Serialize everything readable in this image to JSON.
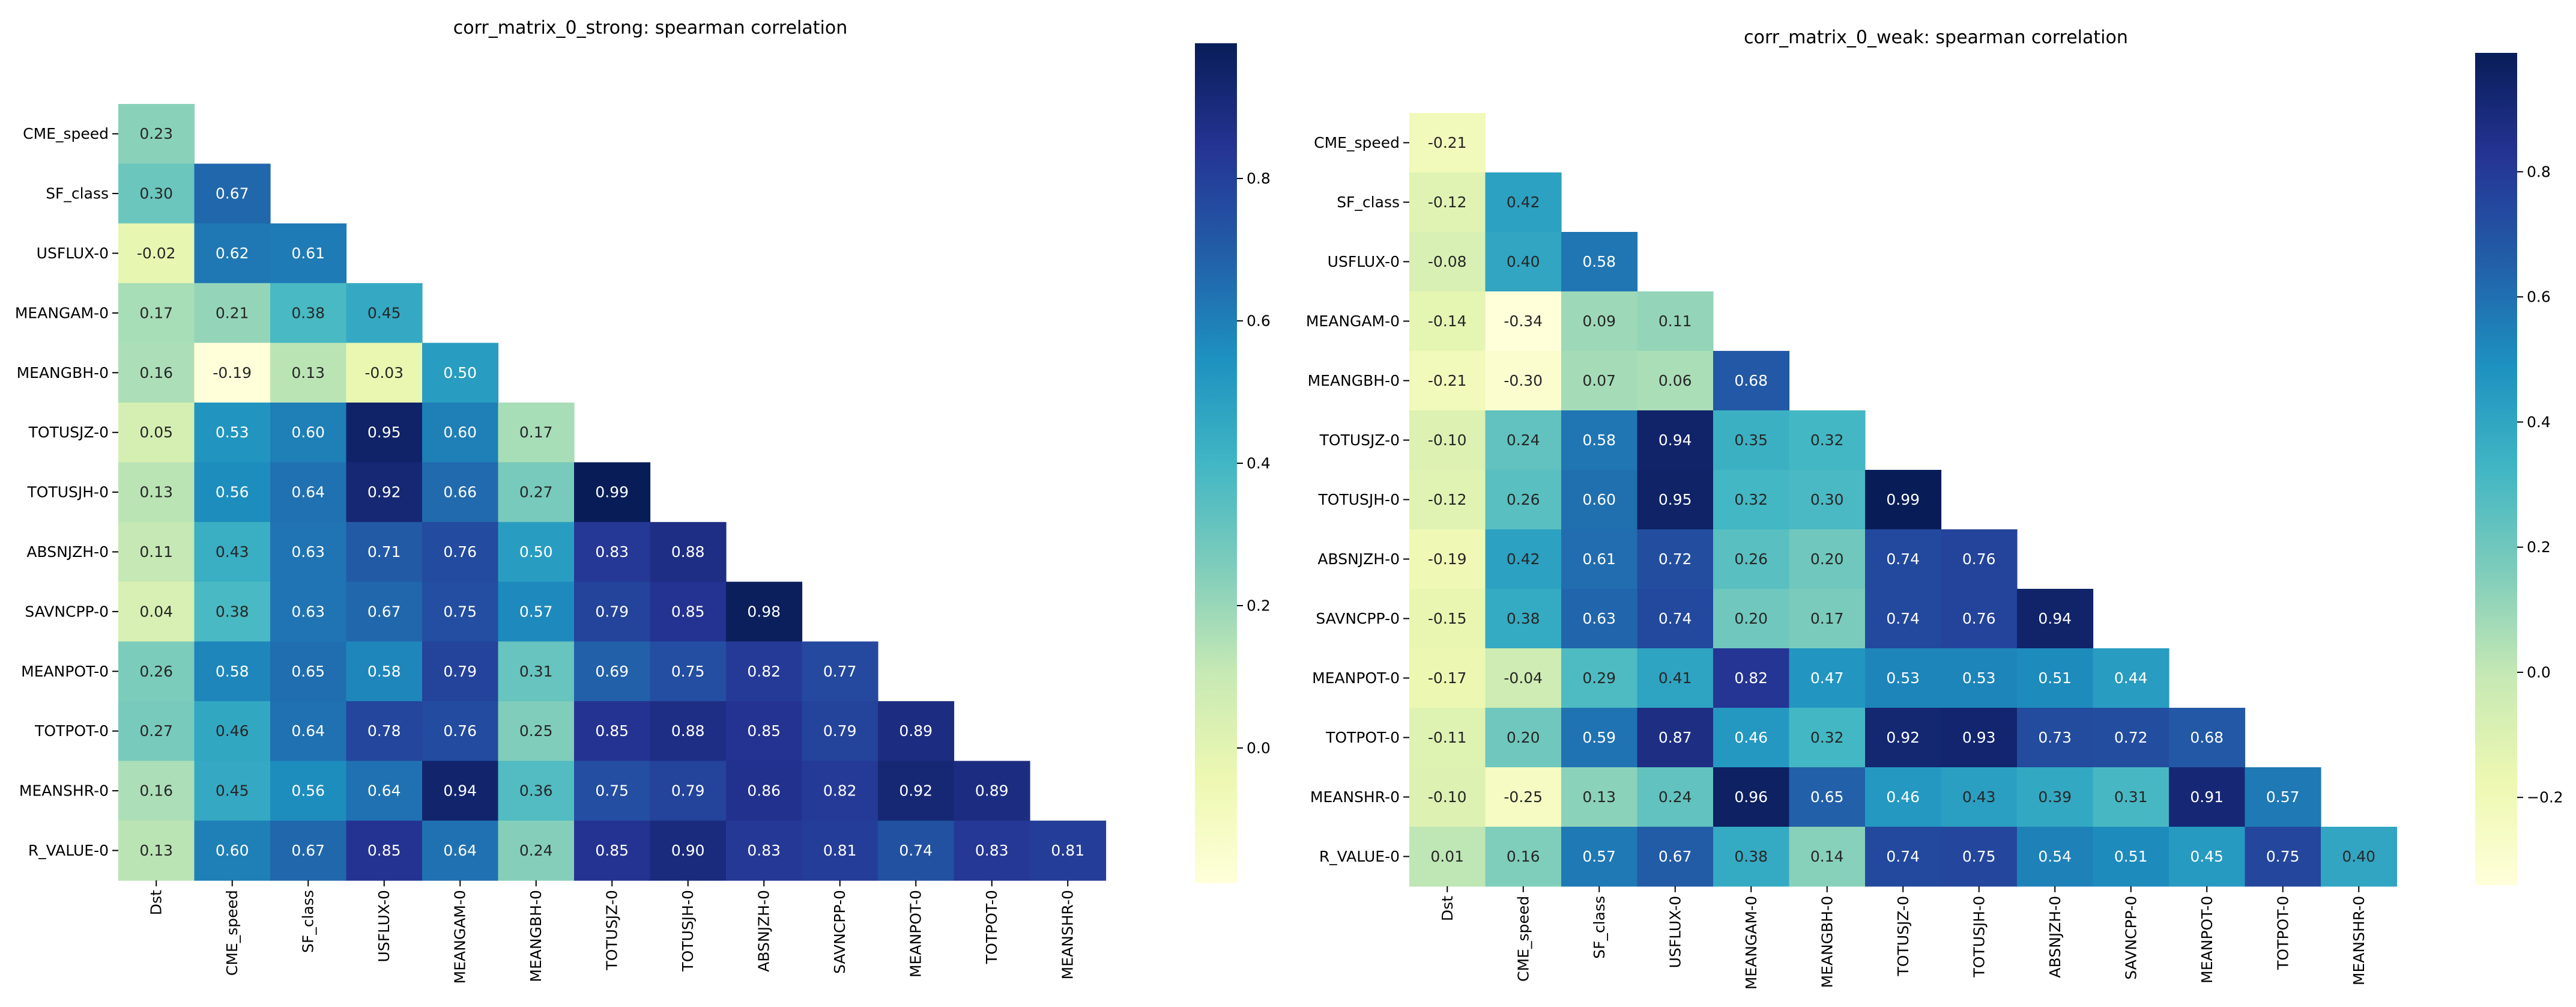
{
  "chart_data": [
    {
      "type": "heatmap",
      "title": "corr_matrix_0_strong: spearman correlation",
      "rows": [
        "CME_speed",
        "SF_class",
        "USFLUX-0",
        "MEANGAM-0",
        "MEANGBH-0",
        "TOTUSJZ-0",
        "TOTUSJH-0",
        "ABSNJZH-0",
        "SAVNCPP-0",
        "MEANPOT-0",
        "TOTPOT-0",
        "MEANSHR-0",
        "R_VALUE-0"
      ],
      "columns": [
        "Dst",
        "CME_speed",
        "SF_class",
        "USFLUX-0",
        "MEANGAM-0",
        "MEANGBH-0",
        "TOTUSJZ-0",
        "TOTUSJH-0",
        "ABSNJZH-0",
        "SAVNCPP-0",
        "MEANPOT-0",
        "TOTPOT-0",
        "MEANSHR-0"
      ],
      "values": [
        [
          0.23
        ],
        [
          0.3,
          0.67
        ],
        [
          -0.02,
          0.62,
          0.61
        ],
        [
          0.17,
          0.21,
          0.38,
          0.45
        ],
        [
          0.16,
          -0.19,
          0.13,
          -0.03,
          0.5
        ],
        [
          0.05,
          0.53,
          0.6,
          0.95,
          0.6,
          0.17
        ],
        [
          0.13,
          0.56,
          0.64,
          0.92,
          0.66,
          0.27,
          0.99
        ],
        [
          0.11,
          0.43,
          0.63,
          0.71,
          0.76,
          0.5,
          0.83,
          0.88
        ],
        [
          0.04,
          0.38,
          0.63,
          0.67,
          0.75,
          0.57,
          0.79,
          0.85,
          0.98
        ],
        [
          0.26,
          0.58,
          0.65,
          0.58,
          0.79,
          0.31,
          0.69,
          0.75,
          0.82,
          0.77
        ],
        [
          0.27,
          0.46,
          0.64,
          0.78,
          0.76,
          0.25,
          0.85,
          0.88,
          0.85,
          0.79,
          0.89
        ],
        [
          0.16,
          0.45,
          0.56,
          0.64,
          0.94,
          0.36,
          0.75,
          0.79,
          0.86,
          0.82,
          0.92,
          0.89
        ],
        [
          0.13,
          0.6,
          0.67,
          0.85,
          0.64,
          0.24,
          0.85,
          0.9,
          0.83,
          0.81,
          0.74,
          0.83,
          0.81
        ]
      ],
      "colormap": "YlGnBu",
      "color_range": [
        -0.19,
        0.99
      ],
      "colorbar_ticks": [
        0.0,
        0.2,
        0.4,
        0.6,
        0.8
      ],
      "colorbar_tick_labels": [
        "0.0",
        "0.2",
        "0.4",
        "0.6",
        "0.8"
      ]
    },
    {
      "type": "heatmap",
      "title": "corr_matrix_0_weak: spearman correlation",
      "rows": [
        "CME_speed",
        "SF_class",
        "USFLUX-0",
        "MEANGAM-0",
        "MEANGBH-0",
        "TOTUSJZ-0",
        "TOTUSJH-0",
        "ABSNJZH-0",
        "SAVNCPP-0",
        "MEANPOT-0",
        "TOTPOT-0",
        "MEANSHR-0",
        "R_VALUE-0"
      ],
      "columns": [
        "Dst",
        "CME_speed",
        "SF_class",
        "USFLUX-0",
        "MEANGAM-0",
        "MEANGBH-0",
        "TOTUSJZ-0",
        "TOTUSJH-0",
        "ABSNJZH-0",
        "SAVNCPP-0",
        "MEANPOT-0",
        "TOTPOT-0",
        "MEANSHR-0"
      ],
      "values": [
        [
          -0.21
        ],
        [
          -0.12,
          0.42
        ],
        [
          -0.08,
          0.4,
          0.58
        ],
        [
          -0.14,
          -0.34,
          0.09,
          0.11
        ],
        [
          -0.21,
          -0.3,
          0.07,
          0.06,
          0.68
        ],
        [
          -0.1,
          0.24,
          0.58,
          0.94,
          0.35,
          0.32
        ],
        [
          -0.12,
          0.26,
          0.6,
          0.95,
          0.32,
          0.3,
          0.99
        ],
        [
          -0.19,
          0.42,
          0.61,
          0.72,
          0.26,
          0.2,
          0.74,
          0.76
        ],
        [
          -0.15,
          0.38,
          0.63,
          0.74,
          0.2,
          0.17,
          0.74,
          0.76,
          0.94
        ],
        [
          -0.17,
          -0.04,
          0.29,
          0.41,
          0.82,
          0.47,
          0.53,
          0.53,
          0.51,
          0.44
        ],
        [
          -0.11,
          0.2,
          0.59,
          0.87,
          0.46,
          0.32,
          0.92,
          0.93,
          0.73,
          0.72,
          0.68
        ],
        [
          -0.1,
          -0.25,
          0.13,
          0.24,
          0.96,
          0.65,
          0.46,
          0.43,
          0.39,
          0.31,
          0.91,
          0.57
        ],
        [
          0.01,
          0.16,
          0.57,
          0.67,
          0.38,
          0.14,
          0.74,
          0.75,
          0.54,
          0.51,
          0.45,
          0.75,
          0.4
        ]
      ],
      "colormap": "YlGnBu",
      "color_range": [
        -0.34,
        0.99
      ],
      "colorbar_ticks": [
        -0.2,
        0.0,
        0.2,
        0.4,
        0.6,
        0.8
      ],
      "colorbar_tick_labels": [
        "−0.2",
        "0.0",
        "0.2",
        "0.4",
        "0.6",
        "0.8"
      ]
    }
  ]
}
